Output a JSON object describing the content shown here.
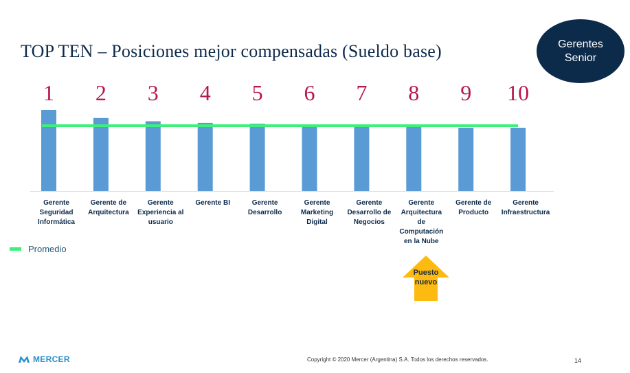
{
  "header": {
    "title": "TOP TEN – Posiciones mejor compensadas (Sueldo base)"
  },
  "badge": {
    "line1": "Gerentes",
    "line2": "Senior"
  },
  "chart_data": {
    "type": "bar",
    "title": "TOP TEN – Posiciones mejor compensadas (Sueldo base)",
    "ranks": [
      "1",
      "2",
      "3",
      "4",
      "5",
      "6",
      "7",
      "8",
      "9",
      "10"
    ],
    "categories": [
      [
        "Gerente",
        "Seguridad",
        "Informática"
      ],
      [
        "Gerente de",
        "Arquitectura"
      ],
      [
        "Gerente",
        "Experiencia al",
        "usuario"
      ],
      [
        "Gerente BI"
      ],
      [
        "Gerente",
        "Desarrollo"
      ],
      [
        "Gerente",
        "Marketing",
        "Digital"
      ],
      [
        "Gerente",
        "Desarrollo de",
        "Negocios"
      ],
      [
        "Gerente",
        "Arquitectura",
        "de",
        "Computación",
        "en la Nube"
      ],
      [
        "Gerente de",
        "Producto"
      ],
      [
        "Gerente",
        "Infraestructura"
      ]
    ],
    "series": [
      {
        "name": "Sueldo base",
        "color": "#5b9bd5",
        "values": [
          100,
          90,
          86,
          84,
          83,
          82,
          80,
          79,
          78,
          78
        ]
      },
      {
        "name": "Promedio",
        "color": "#3ef07a",
        "values": [
          80.5,
          80.5,
          80.5,
          80.5,
          80.5,
          80.5,
          80.5,
          80.5,
          80.5,
          80.5
        ]
      }
    ],
    "ylim": [
      0,
      100
    ],
    "grid": false,
    "legend": "bottom-left",
    "rank_color": "#b5174f",
    "axis_label_color": "#0c2a4a"
  },
  "legend": {
    "label": "Promedio"
  },
  "callout": {
    "line1": "Puesto",
    "line2": "nuevo"
  },
  "footer": {
    "logo": "MERCER",
    "copyright": "Copyright © 2020 Mercer (Argentina) S.A. Todos los derechos reservados.",
    "page": "14"
  }
}
